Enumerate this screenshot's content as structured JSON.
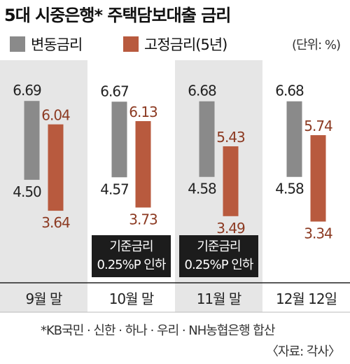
{
  "title": "5대 시중은행* 주택담보대출 금리",
  "unit": "(단위: %)",
  "legend": [
    {
      "label": "변동금리",
      "color": "#8a8a8a"
    },
    {
      "label": "고정금리(5년)",
      "color": "#b85a3e"
    }
  ],
  "footnote": "*KB국민 · 신한 · 하나 · 우리 · NH농협은행 합산",
  "source": "〈자료: 각사〉",
  "chart_data": {
    "type": "floating-bar",
    "categories": [
      "9월 말",
      "10월 말",
      "11월 말",
      "12월 12일"
    ],
    "shaded_periods": [
      0,
      2
    ],
    "series": [
      {
        "name": "변동금리",
        "color": "#8a8a8a",
        "high": [
          6.69,
          6.67,
          6.68,
          6.68
        ],
        "low": [
          4.5,
          4.57,
          4.58,
          4.58
        ]
      },
      {
        "name": "고정금리(5년)",
        "color": "#b85a3e",
        "high": [
          6.04,
          6.13,
          5.43,
          5.74
        ],
        "low": [
          3.64,
          3.73,
          3.49,
          3.34
        ]
      }
    ],
    "annotations": [
      {
        "category_index": 1,
        "lines": [
          "기준금리",
          "0.25%P 인하"
        ]
      },
      {
        "category_index": 2,
        "lines": [
          "기준금리",
          "0.25%P 인하"
        ]
      }
    ],
    "ylim": [
      3.0,
      7.2
    ]
  }
}
